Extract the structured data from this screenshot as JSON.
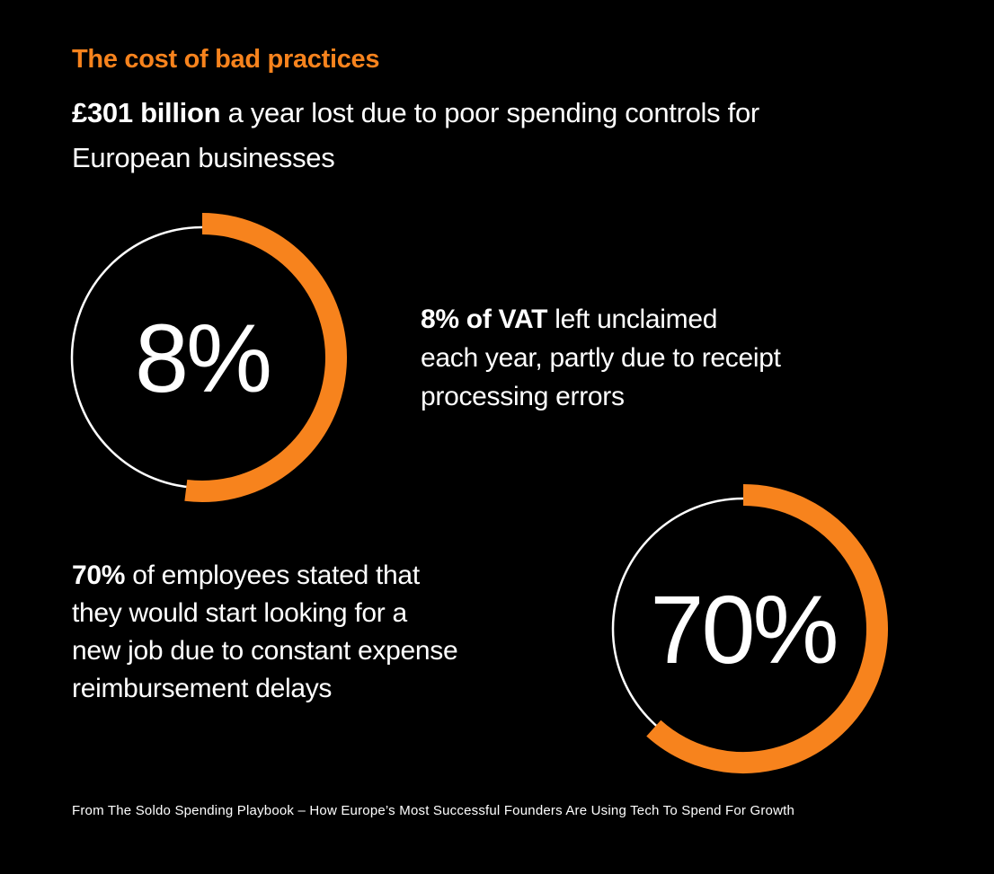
{
  "page": {
    "background_color": "#000000",
    "accent_color": "#F7831D",
    "text_color": "#FFFFFF"
  },
  "header": {
    "title": "The cost of bad practices",
    "subtitle_bold": "£301 billion",
    "subtitle_rest": " a year lost due to poor spending controls for\nEuropean businesses"
  },
  "stats": [
    {
      "id": "vat",
      "text_bold": "8% of VAT",
      "text_rest": " left unclaimed\neach year, partly due to receipt\nprocessing errors"
    },
    {
      "id": "employees",
      "text_bold": "70%",
      "text_rest": " of employees stated that\nthey would start looking for a\nnew job due to constant expense\nreimbursement delays"
    }
  ],
  "footer": {
    "source": "From The Soldo Spending Playbook – How Europe’s Most Successful Founders Are Using Tech To Spend For Growth"
  },
  "chart_data": [
    {
      "type": "pie",
      "subtype": "donut-progress",
      "title": "8% of VAT left unclaimed each year, partly due to receipt processing errors",
      "center_label": "8%",
      "value_percent": 8,
      "arc_start_deg": 0,
      "arc_sweep_deg": 187,
      "visual_arc_percent": 52,
      "ring_color": "#FFFFFF",
      "arc_color": "#F7831D",
      "legend": "none",
      "grid": "off"
    },
    {
      "type": "pie",
      "subtype": "donut-progress",
      "title": "70% of employees stated that they would start looking for a new job due to constant expense reimbursement delays",
      "center_label": "70%",
      "value_percent": 70,
      "arc_start_deg": 0,
      "arc_sweep_deg": 222,
      "visual_arc_percent": 62,
      "ring_color": "#FFFFFF",
      "arc_color": "#F7831D",
      "legend": "none",
      "grid": "off"
    }
  ]
}
